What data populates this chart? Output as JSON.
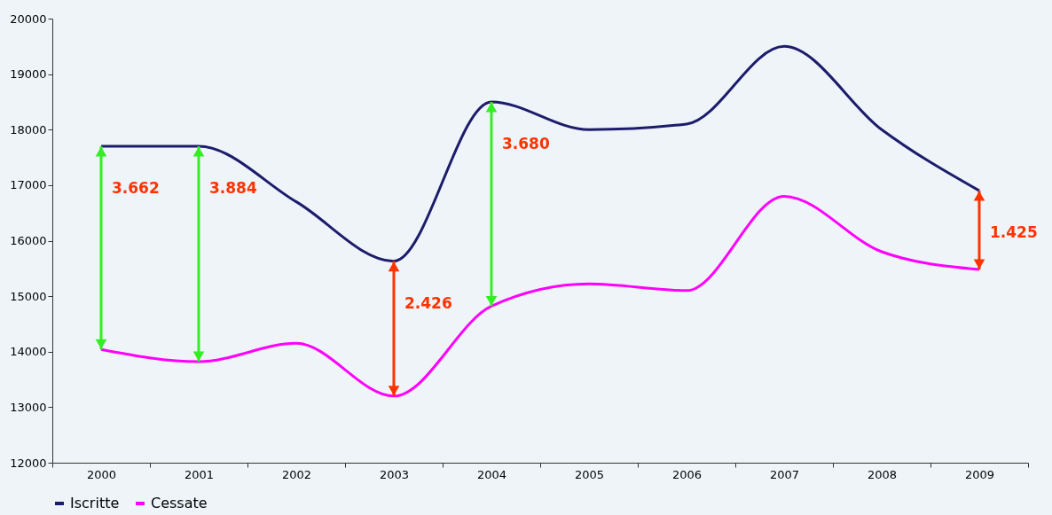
{
  "chart_data": {
    "type": "line",
    "categories": [
      "2000",
      "2001",
      "2002",
      "2003",
      "2004",
      "2005",
      "2006",
      "2007",
      "2008",
      "2009"
    ],
    "series": [
      {
        "name": "Iscritte",
        "color": "#1c1c6b",
        "values": [
          17700,
          17700,
          16700,
          15630,
          18500,
          18000,
          18100,
          19500,
          18000,
          16900
        ]
      },
      {
        "name": "Cessate",
        "color": "#ff00ff",
        "values": [
          14040,
          13820,
          14150,
          13200,
          14820,
          15220,
          15100,
          16800,
          15800,
          15480
        ]
      }
    ],
    "ylim": [
      12000,
      20000
    ],
    "yticks": [
      12000,
      13000,
      14000,
      15000,
      16000,
      17000,
      18000,
      19000,
      20000
    ],
    "grid": false,
    "legend": "bottom",
    "annotations": [
      {
        "text": "3.662",
        "x": "2000",
        "y": 17700
      },
      {
        "text": "3.884",
        "x": "2001",
        "y": 17700
      },
      {
        "text": "2.426",
        "x": "2003",
        "y": 15630
      },
      {
        "text": "3.680",
        "x": "2004",
        "y": 18500
      },
      {
        "text": "1.425",
        "x": "2009",
        "y": 16900
      }
    ]
  }
}
